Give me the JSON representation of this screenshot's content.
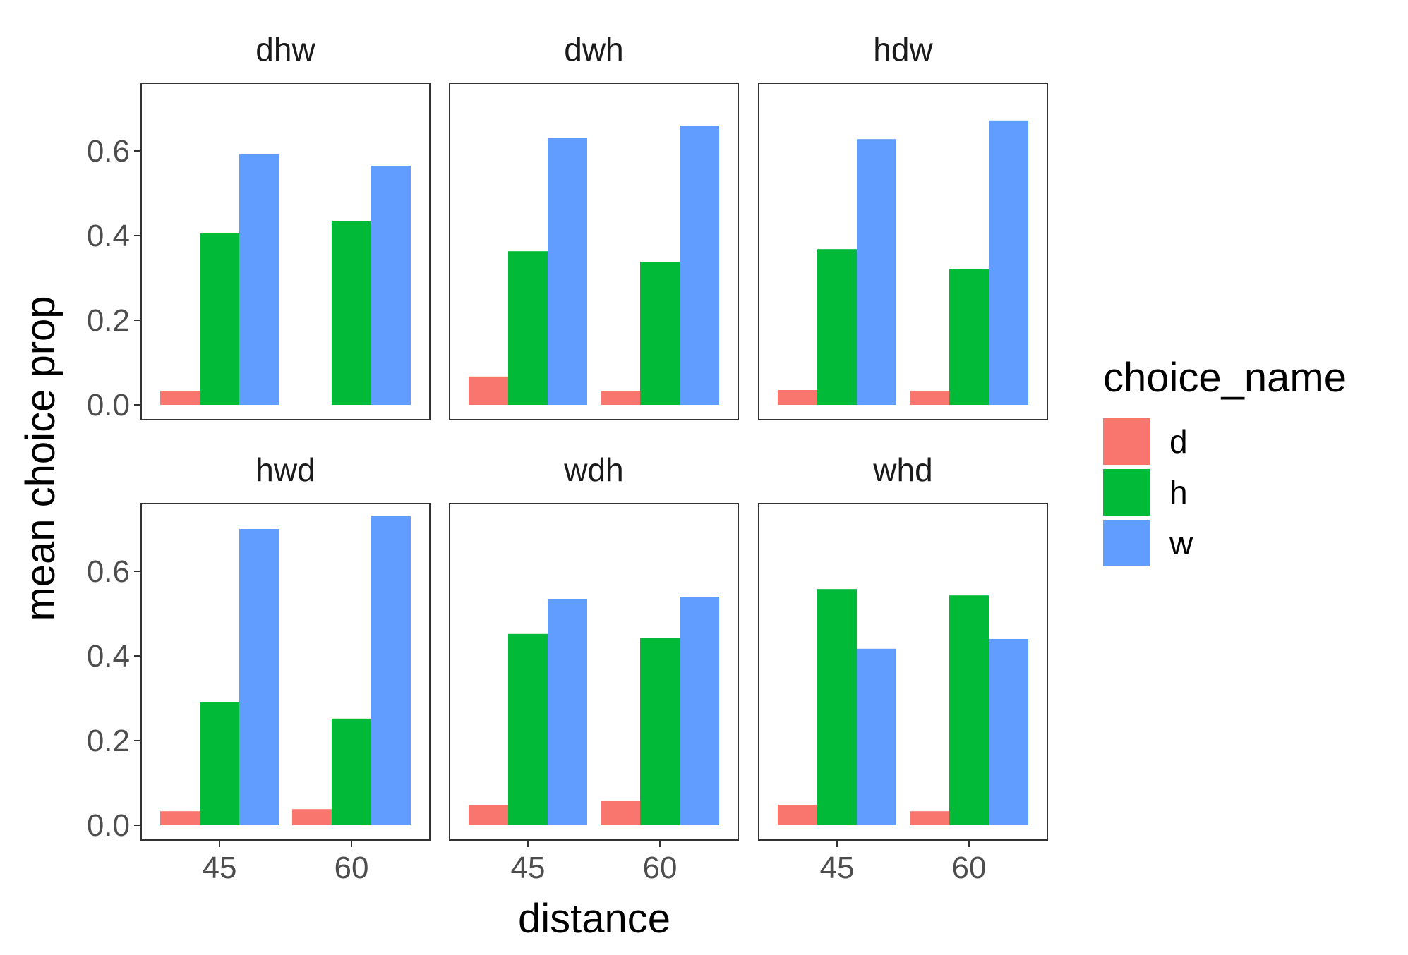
{
  "chart_data": {
    "type": "bar",
    "xlabel": "distance",
    "ylabel": "mean choice prop",
    "ylim": [
      0,
      0.75
    ],
    "y_ticks": [
      "0.0",
      "0.2",
      "0.4",
      "0.6"
    ],
    "y_tick_values": [
      0,
      0.2,
      0.4,
      0.6
    ],
    "categories": [
      "45",
      "60"
    ],
    "legend": {
      "title": "choice_name",
      "position": "right",
      "items": [
        {
          "name": "d",
          "color": "#F8766D"
        },
        {
          "name": "h",
          "color": "#00BA38"
        },
        {
          "name": "w",
          "color": "#619CFF"
        }
      ]
    },
    "grid": false,
    "facets": [
      {
        "label": "dhw",
        "series": [
          {
            "name": "d",
            "values": [
              0.033,
              0
            ]
          },
          {
            "name": "h",
            "values": [
              0.405,
              0.435
            ]
          },
          {
            "name": "w",
            "values": [
              0.592,
              0.565
            ]
          }
        ]
      },
      {
        "label": "dwh",
        "series": [
          {
            "name": "d",
            "values": [
              0.067,
              0.033
            ]
          },
          {
            "name": "h",
            "values": [
              0.363,
              0.338
            ]
          },
          {
            "name": "w",
            "values": [
              0.63,
              0.66
            ]
          }
        ]
      },
      {
        "label": "hdw",
        "series": [
          {
            "name": "d",
            "values": [
              0.035,
              0.033
            ]
          },
          {
            "name": "h",
            "values": [
              0.368,
              0.32
            ]
          },
          {
            "name": "w",
            "values": [
              0.628,
              0.672
            ]
          }
        ]
      },
      {
        "label": "hwd",
        "series": [
          {
            "name": "d",
            "values": [
              0.033,
              0.038
            ]
          },
          {
            "name": "h",
            "values": [
              0.29,
              0.252
            ]
          },
          {
            "name": "w",
            "values": [
              0.7,
              0.73
            ]
          }
        ]
      },
      {
        "label": "wdh",
        "series": [
          {
            "name": "d",
            "values": [
              0.047,
              0.057
            ]
          },
          {
            "name": "h",
            "values": [
              0.452,
              0.443
            ]
          },
          {
            "name": "w",
            "values": [
              0.535,
              0.54
            ]
          }
        ]
      },
      {
        "label": "whd",
        "series": [
          {
            "name": "d",
            "values": [
              0.048,
              0.033
            ]
          },
          {
            "name": "h",
            "values": [
              0.558,
              0.543
            ]
          },
          {
            "name": "w",
            "values": [
              0.417,
              0.44
            ]
          }
        ]
      }
    ]
  }
}
